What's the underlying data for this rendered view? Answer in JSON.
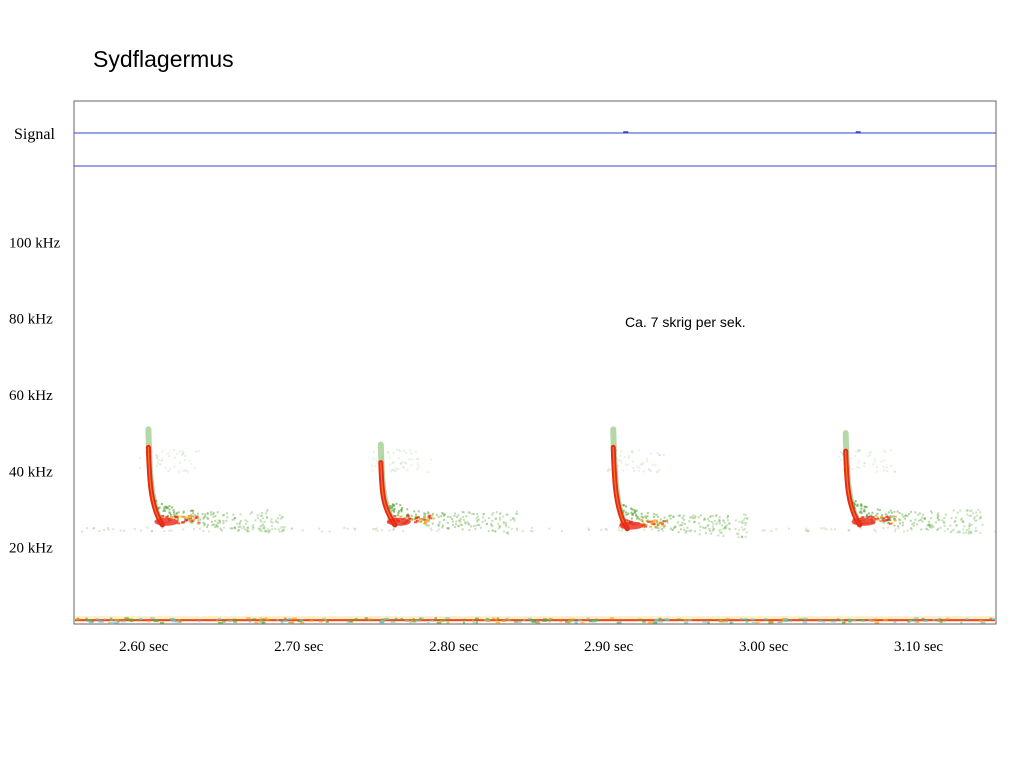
{
  "slide": {
    "title": "Sydflagermus"
  },
  "chart_data": {
    "type": "spectrogram",
    "title": "Sydflagermus",
    "signal_label": "Signal",
    "annotation": "Ca. 7 skrig per sek.",
    "y_axis": {
      "unit": "kHz",
      "ticks": [
        100,
        80,
        60,
        40,
        20
      ],
      "tick_labels": [
        "100 kHz",
        "80 kHz",
        "60 kHz",
        "40 kHz",
        "20 kHz"
      ],
      "range": [
        0,
        120
      ]
    },
    "x_axis": {
      "unit": "sec",
      "ticks": [
        2.6,
        2.7,
        2.8,
        2.9,
        3.0,
        3.1
      ],
      "tick_labels": [
        "2.60 sec",
        "2.70 sec",
        "2.80 sec",
        "2.90 sec",
        "3.00 sec",
        "3.10 sec"
      ],
      "range": [
        2.555,
        3.15
      ]
    },
    "calls": [
      {
        "time": 2.603,
        "start_khz": 51,
        "end_khz": 26
      },
      {
        "time": 2.753,
        "start_khz": 47,
        "end_khz": 26
      },
      {
        "time": 2.903,
        "start_khz": 51,
        "end_khz": 25
      },
      {
        "time": 3.053,
        "start_khz": 50,
        "end_khz": 26
      }
    ],
    "noise_band_khz": 1,
    "colors": {
      "signal_line": "#3344cc",
      "call_core": "#e8281a",
      "call_mid": "#f5a020",
      "call_tail": "#5aa83a",
      "frame": "#666666"
    }
  }
}
